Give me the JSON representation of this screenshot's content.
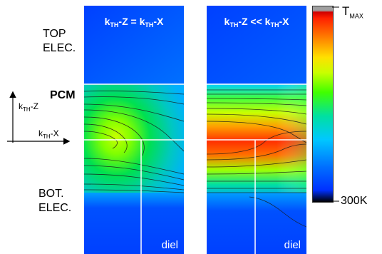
{
  "labels": {
    "top_electrode": [
      "TOP",
      "ELEC."
    ],
    "bottom_electrode": [
      "BOT.",
      "ELEC."
    ],
    "pcm": "PCM"
  },
  "axes": {
    "z_prefix": "k",
    "z_sub": "TH",
    "z_suffix": "-Z",
    "x_prefix": "k",
    "x_sub": "TH",
    "x_suffix": "-X"
  },
  "panels": [
    {
      "id": "iso",
      "title_a": "k",
      "title_a_sub": "TH",
      "title_mid": "-Z = k",
      "title_b_sub": "TH",
      "title_end": "-X",
      "dielectric_label": "diel"
    },
    {
      "id": "aniso",
      "title_a": "k",
      "title_a_sub": "TH",
      "title_mid": "-Z << k",
      "title_b_sub": "TH",
      "title_end": "-X",
      "dielectric_label": "diel"
    }
  ],
  "colorbar": {
    "max_label_prefix": "T",
    "max_label_sub": "MAX",
    "min_label": "300K",
    "colors": [
      "#000000",
      "#0040ff",
      "#00c8ff",
      "#00e090",
      "#40ff00",
      "#c8ff00",
      "#ffe000",
      "#ff8000",
      "#ff2000",
      "#c00000",
      "#a0a0a0"
    ]
  }
}
